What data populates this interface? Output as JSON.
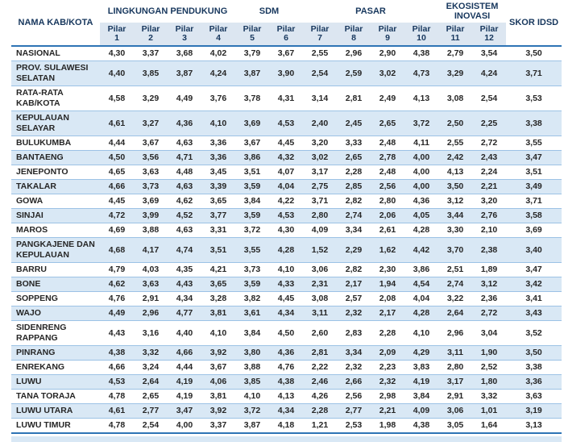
{
  "table": {
    "name_header": "NAMA KAB/KOTA",
    "skor_header": "SKOR IDSD",
    "pilar_word": "Pilar",
    "pilar_numbers": [
      "1",
      "2",
      "3",
      "4",
      "5",
      "6",
      "7",
      "8",
      "9",
      "10",
      "11",
      "12"
    ],
    "groups": [
      {
        "label": "LINGKUNGAN PENDUKUNG",
        "span": 4
      },
      {
        "label": "SDM",
        "span": 2
      },
      {
        "label": "PASAR",
        "span": 4
      },
      {
        "label": "EKOSISTEM INOVASI",
        "span": 2
      }
    ],
    "rows": [
      {
        "name": "NASIONAL",
        "values": [
          "4,30",
          "3,37",
          "3,68",
          "4,02",
          "3,79",
          "3,67",
          "2,55",
          "2,96",
          "2,90",
          "4,38",
          "2,79",
          "3,54"
        ],
        "skor": "3,50"
      },
      {
        "name": "PROV. SULAWESI SELATAN",
        "values": [
          "4,40",
          "3,85",
          "3,87",
          "4,24",
          "3,87",
          "3,90",
          "2,54",
          "2,59",
          "3,02",
          "4,73",
          "3,29",
          "4,24"
        ],
        "skor": "3,71"
      },
      {
        "name": "RATA-RATA KAB/KOTA",
        "values": [
          "4,58",
          "3,29",
          "4,49",
          "3,76",
          "3,78",
          "4,31",
          "3,14",
          "2,81",
          "2,49",
          "4,13",
          "3,08",
          "2,54"
        ],
        "skor": "3,53"
      },
      {
        "name": "KEPULAUAN SELAYAR",
        "values": [
          "4,61",
          "3,27",
          "4,36",
          "4,10",
          "3,69",
          "4,53",
          "2,40",
          "2,45",
          "2,65",
          "3,72",
          "2,50",
          "2,25"
        ],
        "skor": "3,38"
      },
      {
        "name": "BULUKUMBA",
        "values": [
          "4,44",
          "3,67",
          "4,63",
          "3,36",
          "3,67",
          "4,45",
          "3,20",
          "3,33",
          "2,48",
          "4,11",
          "2,55",
          "2,72"
        ],
        "skor": "3,55"
      },
      {
        "name": "BANTAENG",
        "values": [
          "4,50",
          "3,56",
          "4,71",
          "3,36",
          "3,86",
          "4,32",
          "3,02",
          "2,65",
          "2,78",
          "4,00",
          "2,42",
          "2,43"
        ],
        "skor": "3,47"
      },
      {
        "name": "JENEPONTO",
        "values": [
          "4,65",
          "3,63",
          "4,48",
          "3,45",
          "3,51",
          "4,07",
          "3,17",
          "2,28",
          "2,48",
          "4,00",
          "4,13",
          "2,24"
        ],
        "skor": "3,51"
      },
      {
        "name": "TAKALAR",
        "values": [
          "4,66",
          "3,73",
          "4,63",
          "3,39",
          "3,59",
          "4,04",
          "2,75",
          "2,85",
          "2,56",
          "4,00",
          "3,50",
          "2,21"
        ],
        "skor": "3,49"
      },
      {
        "name": "GOWA",
        "values": [
          "4,45",
          "3,69",
          "4,62",
          "3,65",
          "3,84",
          "4,22",
          "3,71",
          "2,82",
          "2,80",
          "4,36",
          "3,12",
          "3,20"
        ],
        "skor": "3,71"
      },
      {
        "name": "SINJAI",
        "values": [
          "4,72",
          "3,99",
          "4,52",
          "3,77",
          "3,59",
          "4,53",
          "2,80",
          "2,74",
          "2,06",
          "4,05",
          "3,44",
          "2,76"
        ],
        "skor": "3,58"
      },
      {
        "name": "MAROS",
        "values": [
          "4,69",
          "3,88",
          "4,63",
          "3,31",
          "3,72",
          "4,30",
          "4,09",
          "3,34",
          "2,61",
          "4,28",
          "3,30",
          "2,10"
        ],
        "skor": "3,69"
      },
      {
        "name": "PANGKAJENE DAN KEPULAUAN",
        "values": [
          "4,68",
          "4,17",
          "4,74",
          "3,51",
          "3,55",
          "4,28",
          "1,52",
          "2,29",
          "1,62",
          "4,42",
          "3,70",
          "2,38"
        ],
        "skor": "3,40"
      },
      {
        "name": "BARRU",
        "values": [
          "4,79",
          "4,03",
          "4,35",
          "4,21",
          "3,73",
          "4,10",
          "3,06",
          "2,82",
          "2,30",
          "3,86",
          "2,51",
          "1,89"
        ],
        "skor": "3,47"
      },
      {
        "name": "BONE",
        "values": [
          "4,62",
          "3,63",
          "4,43",
          "3,65",
          "3,59",
          "4,33",
          "2,31",
          "2,17",
          "1,94",
          "4,54",
          "2,74",
          "3,12"
        ],
        "skor": "3,42"
      },
      {
        "name": "SOPPENG",
        "values": [
          "4,76",
          "2,91",
          "4,34",
          "3,28",
          "3,82",
          "4,45",
          "3,08",
          "2,57",
          "2,08",
          "4,04",
          "3,22",
          "2,36"
        ],
        "skor": "3,41"
      },
      {
        "name": "WAJO",
        "values": [
          "4,49",
          "2,96",
          "4,77",
          "3,81",
          "3,61",
          "4,34",
          "3,11",
          "2,32",
          "2,17",
          "4,28",
          "2,64",
          "2,72"
        ],
        "skor": "3,43"
      },
      {
        "name": "SIDENRENG RAPPANG",
        "values": [
          "4,43",
          "3,16",
          "4,40",
          "4,10",
          "3,84",
          "4,50",
          "2,60",
          "2,83",
          "2,28",
          "4,10",
          "2,96",
          "3,04"
        ],
        "skor": "3,52"
      },
      {
        "name": "PINRANG",
        "values": [
          "4,38",
          "3,32",
          "4,66",
          "3,92",
          "3,80",
          "4,36",
          "2,81",
          "3,34",
          "2,09",
          "4,29",
          "3,11",
          "1,90"
        ],
        "skor": "3,50"
      },
      {
        "name": "ENREKANG",
        "values": [
          "4,66",
          "3,24",
          "4,44",
          "3,67",
          "3,88",
          "4,76",
          "2,22",
          "2,32",
          "2,23",
          "3,83",
          "2,80",
          "2,52"
        ],
        "skor": "3,38"
      },
      {
        "name": "LUWU",
        "values": [
          "4,53",
          "2,64",
          "4,19",
          "4,06",
          "3,85",
          "4,38",
          "2,46",
          "2,66",
          "2,32",
          "4,19",
          "3,17",
          "1,80"
        ],
        "skor": "3,36"
      },
      {
        "name": "TANA TORAJA",
        "values": [
          "4,78",
          "2,65",
          "4,19",
          "3,81",
          "4,10",
          "4,13",
          "4,26",
          "2,56",
          "2,98",
          "3,84",
          "2,91",
          "3,32"
        ],
        "skor": "3,63"
      },
      {
        "name": "LUWU UTARA",
        "values": [
          "4,61",
          "2,77",
          "3,47",
          "3,92",
          "3,72",
          "4,34",
          "2,28",
          "2,77",
          "2,21",
          "4,09",
          "3,06",
          "1,01"
        ],
        "skor": "3,19"
      },
      {
        "name": "LUWU TIMUR",
        "values": [
          "4,78",
          "2,54",
          "4,00",
          "3,37",
          "3,87",
          "4,18",
          "1,21",
          "2,53",
          "1,98",
          "4,38",
          "3,05",
          "1,64"
        ],
        "skor": "3,13"
      }
    ]
  },
  "colors": {
    "stripe": "#d9e8f5",
    "subheader": "#dce6f1",
    "row_line": "#9cc2e5",
    "accent_line": "#2e74b5",
    "header_text": "#17375d",
    "body_text": "#262626"
  }
}
